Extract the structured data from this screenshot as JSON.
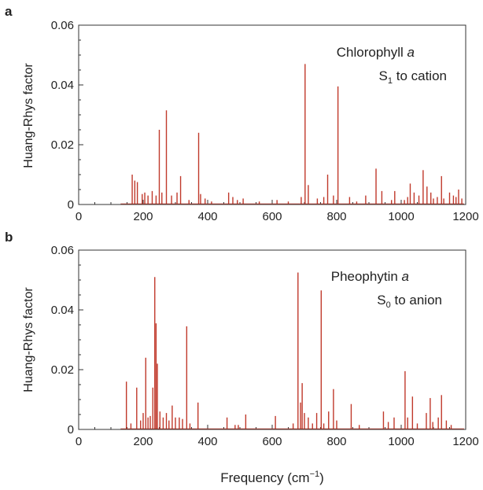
{
  "figure": {
    "xlabel_main": "Frequency (cm",
    "xlabel_sup": "−1",
    "xlabel_close": ")"
  },
  "colors": {
    "line": "#c0392b",
    "axis": "#333333"
  },
  "chart_data": [
    {
      "type": "line",
      "panel_label": "a",
      "legend": {
        "name_main": "Chlorophyll ",
        "name_italic": "a",
        "trans_pre": "S",
        "trans_sub": "1",
        "trans_post": " to cation"
      },
      "ylabel": "Huang-Rhys factor",
      "xlim": [
        0,
        1200
      ],
      "ylim": [
        0,
        0.06
      ],
      "xticks": [
        0,
        200,
        400,
        600,
        800,
        1000,
        1200
      ],
      "yticks": [
        0,
        0.02,
        0.04,
        0.06
      ],
      "ytick_labels": [
        "0",
        "0.02",
        "0.04",
        "0.06"
      ],
      "peaks": [
        [
          166,
          0.01
        ],
        [
          174,
          0.008
        ],
        [
          182,
          0.0075
        ],
        [
          197,
          0.0035
        ],
        [
          205,
          0.004
        ],
        [
          215,
          0.003
        ],
        [
          228,
          0.0045
        ],
        [
          240,
          0.003
        ],
        [
          250,
          0.025
        ],
        [
          258,
          0.004
        ],
        [
          272,
          0.0315
        ],
        [
          288,
          0.003
        ],
        [
          305,
          0.004
        ],
        [
          316,
          0.0095
        ],
        [
          342,
          0.0015
        ],
        [
          372,
          0.024
        ],
        [
          378,
          0.0035
        ],
        [
          392,
          0.002
        ],
        [
          412,
          0.001
        ],
        [
          465,
          0.004
        ],
        [
          478,
          0.0025
        ],
        [
          492,
          0.0015
        ],
        [
          510,
          0.002
        ],
        [
          560,
          0.001
        ],
        [
          615,
          0.0015
        ],
        [
          650,
          0.001
        ],
        [
          690,
          0.0025
        ],
        [
          702,
          0.047
        ],
        [
          712,
          0.0065
        ],
        [
          740,
          0.002
        ],
        [
          760,
          0.0025
        ],
        [
          772,
          0.01
        ],
        [
          790,
          0.003
        ],
        [
          804,
          0.0395
        ],
        [
          840,
          0.0025
        ],
        [
          862,
          0.001
        ],
        [
          890,
          0.003
        ],
        [
          922,
          0.012
        ],
        [
          940,
          0.0045
        ],
        [
          970,
          0.0015
        ],
        [
          980,
          0.0045
        ],
        [
          1010,
          0.0015
        ],
        [
          1020,
          0.0025
        ],
        [
          1028,
          0.007
        ],
        [
          1040,
          0.004
        ],
        [
          1055,
          0.003
        ],
        [
          1068,
          0.0115
        ],
        [
          1080,
          0.006
        ],
        [
          1092,
          0.004
        ],
        [
          1100,
          0.002
        ],
        [
          1112,
          0.0025
        ],
        [
          1125,
          0.0095
        ],
        [
          1132,
          0.002
        ],
        [
          1150,
          0.004
        ],
        [
          1162,
          0.003
        ],
        [
          1170,
          0.0025
        ],
        [
          1178,
          0.005
        ],
        [
          1188,
          0.002
        ]
      ]
    },
    {
      "type": "line",
      "panel_label": "b",
      "legend": {
        "name_main": "Pheophytin ",
        "name_italic": "a",
        "trans_pre": "S",
        "trans_sub": "0",
        "trans_post": " to anion"
      },
      "ylabel": "Huang-Rhys factor",
      "xlim": [
        0,
        1200
      ],
      "ylim": [
        0,
        0.06
      ],
      "xticks": [
        0,
        200,
        400,
        600,
        800,
        1000,
        1200
      ],
      "yticks": [
        0,
        0.02,
        0.04,
        0.06
      ],
      "ytick_labels": [
        "0",
        "0.02",
        "0.04",
        "0.06"
      ],
      "peaks": [
        [
          148,
          0.016
        ],
        [
          162,
          0.002
        ],
        [
          180,
          0.014
        ],
        [
          192,
          0.003
        ],
        [
          200,
          0.0055
        ],
        [
          208,
          0.024
        ],
        [
          215,
          0.004
        ],
        [
          222,
          0.0045
        ],
        [
          230,
          0.014
        ],
        [
          236,
          0.051
        ],
        [
          240,
          0.0355
        ],
        [
          244,
          0.022
        ],
        [
          252,
          0.006
        ],
        [
          262,
          0.004
        ],
        [
          272,
          0.0055
        ],
        [
          280,
          0.003
        ],
        [
          290,
          0.008
        ],
        [
          300,
          0.004
        ],
        [
          312,
          0.004
        ],
        [
          322,
          0.0035
        ],
        [
          335,
          0.0345
        ],
        [
          345,
          0.002
        ],
        [
          370,
          0.009
        ],
        [
          460,
          0.004
        ],
        [
          485,
          0.0015
        ],
        [
          495,
          0.0015
        ],
        [
          518,
          0.005
        ],
        [
          610,
          0.0045
        ],
        [
          665,
          0.002
        ],
        [
          680,
          0.0525
        ],
        [
          688,
          0.009
        ],
        [
          693,
          0.0155
        ],
        [
          700,
          0.0055
        ],
        [
          712,
          0.004
        ],
        [
          725,
          0.002
        ],
        [
          738,
          0.0055
        ],
        [
          752,
          0.0465
        ],
        [
          760,
          0.002
        ],
        [
          775,
          0.006
        ],
        [
          790,
          0.0135
        ],
        [
          800,
          0.003
        ],
        [
          845,
          0.0085
        ],
        [
          870,
          0.0015
        ],
        [
          945,
          0.006
        ],
        [
          960,
          0.0025
        ],
        [
          978,
          0.004
        ],
        [
          1012,
          0.0195
        ],
        [
          1020,
          0.004
        ],
        [
          1035,
          0.011
        ],
        [
          1050,
          0.002
        ],
        [
          1078,
          0.0055
        ],
        [
          1090,
          0.0105
        ],
        [
          1098,
          0.0025
        ],
        [
          1115,
          0.004
        ],
        [
          1125,
          0.0115
        ],
        [
          1140,
          0.003
        ],
        [
          1155,
          0.0015
        ]
      ]
    }
  ]
}
